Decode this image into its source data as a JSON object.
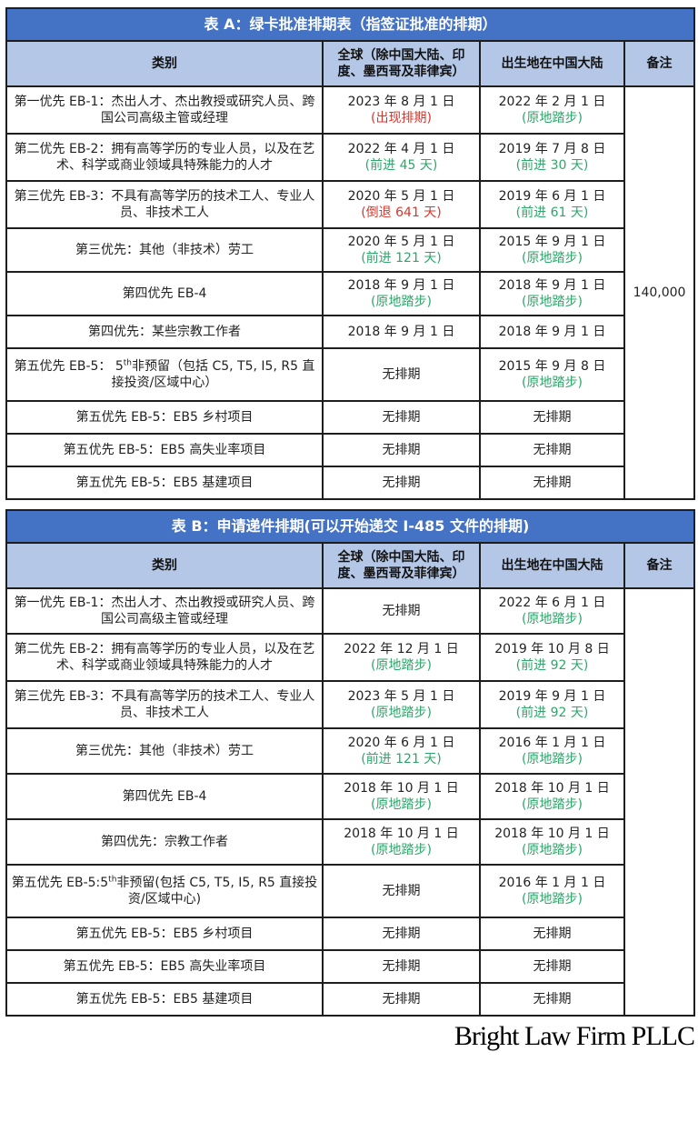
{
  "colors": {
    "title_bg": "#4472C4",
    "header_bg": "#B4C7E7",
    "retrogress": "#D9352B",
    "advance": "#2EA66A"
  },
  "headers": {
    "category": "类别",
    "global": "全球（除中国大陆、印度、墨西哥及菲律宾）",
    "china": "出生地在中国大陆",
    "note": "备注"
  },
  "table_a": {
    "title": "表 A：绿卡批准排期表（指签证批准的排期）",
    "note": "140,000",
    "rows": [
      {
        "category": "第一优先 EB-1：杰出人才、杰出教授或研究人员、跨国公司高级主管或经理",
        "global": "2023 年 8 月 1 日",
        "global_change": "(出现排期)",
        "global_color": "red",
        "china": "2022 年 2 月 1 日",
        "china_change": "(原地踏步)",
        "china_color": "green"
      },
      {
        "category": "第二优先 EB-2：拥有高等学历的专业人员，以及在艺术、科学或商业领域具特殊能力的人才",
        "global": "2022 年 4 月 1 日",
        "global_change": "(前进 45 天)",
        "global_color": "green",
        "china": "2019 年 7 月 8 日",
        "china_change": "(前进 30 天)",
        "china_color": "green"
      },
      {
        "category": "第三优先 EB-3：不具有高等学历的技术工人、专业人员、非技术工人",
        "global": "2020 年 5 月 1 日",
        "global_change": "(倒退 641 天)",
        "global_color": "red",
        "china": "2019 年 6 月 1 日",
        "china_change": "(前进 61 天)",
        "china_color": "green"
      },
      {
        "category": "第三优先：其他（非技术）劳工",
        "global": "2020 年 5 月 1 日",
        "global_change": "(前进 121 天)",
        "global_color": "green",
        "china": "2015 年 9 月 1 日",
        "china_change": "(原地踏步)",
        "china_color": "green"
      },
      {
        "category": "第四优先 EB-4",
        "global": "2018 年 9 月 1 日",
        "global_change": "(原地踏步)",
        "global_color": "green",
        "china": "2018 年 9 月 1 日",
        "china_change": "(原地踏步)",
        "china_color": "green"
      },
      {
        "category": "第四优先：某些宗教工作者",
        "global": "2018 年 9 月 1 日",
        "china": "2018 年 9 月 1 日"
      },
      {
        "category_pre": "第五优先 EB-5： 5",
        "category_sup": "th",
        "category_post": "非预留（包括 C5, T5, I5, R5 直接投资/区域中心）",
        "global": "无排期",
        "china": "2015 年 9 月 8 日",
        "china_change": "(原地踏步)",
        "china_color": "green"
      },
      {
        "category": "第五优先 EB-5：EB5 乡村项目",
        "global": "无排期",
        "china": "无排期"
      },
      {
        "category": "第五优先 EB-5：EB5 高失业率项目",
        "global": "无排期",
        "china": "无排期"
      },
      {
        "category": "第五优先 EB-5：EB5 基建项目",
        "global": "无排期",
        "china": "无排期"
      }
    ]
  },
  "table_b": {
    "title": "表 B：申请递件排期(可以开始递交 I-485 文件的排期)",
    "note": "",
    "rows": [
      {
        "category": "第一优先 EB-1：杰出人才、杰出教授或研究人员、跨国公司高级主管或经理",
        "global": "无排期",
        "china": "2022 年 6 月 1 日",
        "china_change": "(原地踏步)",
        "china_color": "green"
      },
      {
        "category": "第二优先 EB-2：拥有高等学历的专业人员，以及在艺术、科学或商业领域具特殊能力的人才",
        "global": "2022 年 12 月 1 日",
        "global_change": "(原地踏步)",
        "global_color": "green",
        "china": "2019 年 10 月 8 日",
        "china_change": "(前进 92 天)",
        "china_color": "green"
      },
      {
        "category": "第三优先 EB-3：不具有高等学历的技术工人、专业人员、非技术工人",
        "global": "2023 年 5 月 1 日",
        "global_change": "(原地踏步)",
        "global_color": "green",
        "china": "2019 年 9 月 1 日",
        "china_change": "(前进 92 天)",
        "china_color": "green"
      },
      {
        "category": "第三优先：其他（非技术）劳工",
        "global": "2020 年 6 月 1 日",
        "global_change": "(前进 121 天)",
        "global_color": "green",
        "china": "2016 年 1 月 1 日",
        "china_change": "(原地踏步)",
        "china_color": "green"
      },
      {
        "category": "第四优先 EB-4",
        "global": "2018 年 10 月 1 日",
        "global_change": "(原地踏步)",
        "global_color": "green",
        "china": "2018 年 10 月 1 日",
        "china_change": "(原地踏步)",
        "china_color": "green"
      },
      {
        "category": "第四优先：宗教工作者",
        "global": "2018 年 10 月 1 日",
        "global_change": "(原地踏步)",
        "global_color": "green",
        "china": "2018 年 10 月 1 日",
        "china_change": "(原地踏步)",
        "china_color": "green"
      },
      {
        "category_pre": "第五优先 EB-5:5",
        "category_sup": "th",
        "category_post": "非预留(包括 C5, T5, I5, R5 直接投资/区域中心)",
        "global": "无排期",
        "china": "2016 年 1 月 1 日",
        "china_change": "(原地踏步)",
        "china_color": "green"
      },
      {
        "category": "第五优先 EB-5：EB5 乡村项目",
        "global": "无排期",
        "china": "无排期"
      },
      {
        "category": "第五优先 EB-5：EB5 高失业率项目",
        "global": "无排期",
        "china": "无排期"
      },
      {
        "category": "第五优先 EB-5：EB5 基建项目",
        "global": "无排期",
        "china": "无排期"
      }
    ]
  },
  "watermark": "Bright Law Firm PLLC"
}
